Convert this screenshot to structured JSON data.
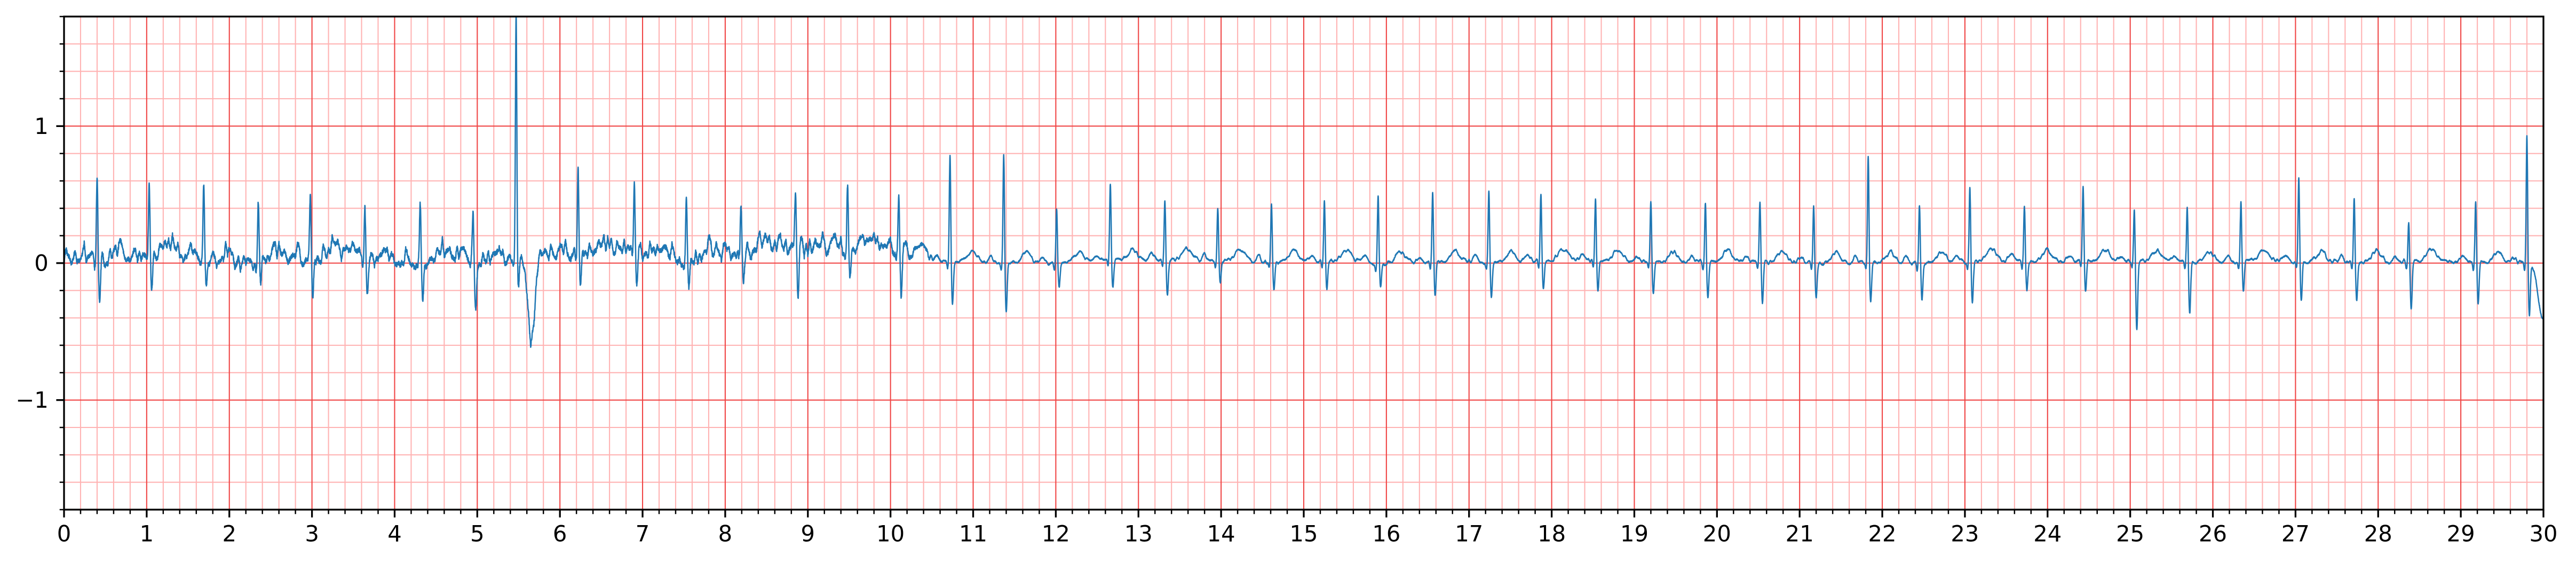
{
  "chart_data": {
    "type": "line",
    "title": "",
    "xlabel": "",
    "ylabel": "",
    "xlim": [
      0,
      30
    ],
    "ylim": [
      -1.8,
      1.8
    ],
    "x_major_step": 1,
    "x_minor_step": 0.2,
    "y_major_step": 1,
    "y_minor_step": 0.2,
    "grid": {
      "major": true,
      "minor": true
    },
    "x_ticks": [
      0,
      1,
      2,
      3,
      4,
      5,
      6,
      7,
      8,
      9,
      10,
      11,
      12,
      13,
      14,
      15,
      16,
      17,
      18,
      19,
      20,
      21,
      22,
      23,
      24,
      25,
      26,
      27,
      28,
      29,
      30
    ],
    "x_tick_labels": [
      "0",
      "1",
      "2",
      "3",
      "4",
      "5",
      "6",
      "7",
      "8",
      "9",
      "10",
      "11",
      "12",
      "13",
      "14",
      "15",
      "16",
      "17",
      "18",
      "19",
      "20",
      "21",
      "22",
      "23",
      "24",
      "25",
      "26",
      "27",
      "28",
      "29",
      "30"
    ],
    "y_ticks": [
      -1,
      0,
      1
    ],
    "y_tick_labels": [
      "−1",
      "0",
      "1"
    ],
    "colors": {
      "major_grid": "#f04646",
      "minor_grid": "#ffb3b3",
      "signal": "#1f77b4",
      "axes": "#000000",
      "background": "#ffffff"
    },
    "series": [
      {
        "wave": {
          "p": 0.04,
          "q": -0.05,
          "t": 0.08
        },
        "segments": [
          {
            "from": 0,
            "to": 10.4,
            "noise": 0.07,
            "offset": 0.06
          },
          {
            "from": 10.4,
            "to": 30,
            "noise": 0.016,
            "offset": 0.01
          }
        ],
        "beats": [
          {
            "t": 0.4,
            "r": 0.55,
            "s": -0.35
          },
          {
            "t": 1.03,
            "r": 0.55,
            "s": -0.28
          },
          {
            "t": 1.69,
            "r": 0.6,
            "s": -0.24
          },
          {
            "t": 2.35,
            "r": 0.4,
            "s": -0.22
          },
          {
            "t": 2.98,
            "r": 0.4,
            "s": -0.32
          },
          {
            "t": 3.64,
            "r": 0.4,
            "s": -0.26
          },
          {
            "t": 4.31,
            "r": 0.45,
            "s": -0.3
          },
          {
            "t": 4.95,
            "r": 0.4,
            "s": -0.36
          },
          {
            "t": 5.47,
            "r": 1.85,
            "s": -0.2,
            "extra": [
              {
                "dt": 0.19,
                "a": -0.62,
                "w": 0.045
              }
            ]
          },
          {
            "t": 6.22,
            "r": 0.65,
            "s": -0.22
          },
          {
            "t": 6.9,
            "r": 0.55,
            "s": -0.2
          },
          {
            "t": 7.53,
            "r": 0.42,
            "s": -0.24
          },
          {
            "t": 8.19,
            "r": 0.33,
            "s": -0.2
          },
          {
            "t": 8.85,
            "r": 0.38,
            "s": -0.38
          },
          {
            "t": 9.48,
            "r": 0.45,
            "s": -0.24
          },
          {
            "t": 10.1,
            "r": 0.38,
            "s": -0.35
          },
          {
            "t": 10.72,
            "r": 0.78,
            "s": -0.32
          },
          {
            "t": 11.37,
            "r": 0.8,
            "s": -0.35
          },
          {
            "t": 12.01,
            "r": 0.4,
            "s": -0.16
          },
          {
            "t": 12.66,
            "r": 0.56,
            "s": -0.2
          },
          {
            "t": 13.32,
            "r": 0.43,
            "s": -0.25
          },
          {
            "t": 13.96,
            "r": 0.38,
            "s": -0.18
          },
          {
            "t": 14.61,
            "r": 0.43,
            "s": -0.2
          },
          {
            "t": 15.25,
            "r": 0.45,
            "s": -0.22
          },
          {
            "t": 15.9,
            "r": 0.5,
            "s": -0.18
          },
          {
            "t": 16.56,
            "r": 0.5,
            "s": -0.26
          },
          {
            "t": 17.24,
            "r": 0.52,
            "s": -0.26
          },
          {
            "t": 17.87,
            "r": 0.48,
            "s": -0.2
          },
          {
            "t": 18.53,
            "r": 0.45,
            "s": -0.22
          },
          {
            "t": 19.2,
            "r": 0.45,
            "s": -0.22
          },
          {
            "t": 19.86,
            "r": 0.43,
            "s": -0.27
          },
          {
            "t": 20.52,
            "r": 0.43,
            "s": -0.3
          },
          {
            "t": 21.17,
            "r": 0.43,
            "s": -0.25
          },
          {
            "t": 21.83,
            "r": 0.8,
            "s": -0.28
          },
          {
            "t": 22.45,
            "r": 0.43,
            "s": -0.28
          },
          {
            "t": 23.06,
            "r": 0.55,
            "s": -0.3
          },
          {
            "t": 23.72,
            "r": 0.4,
            "s": -0.22
          },
          {
            "t": 24.43,
            "r": 0.55,
            "s": -0.22
          },
          {
            "t": 25.05,
            "r": 0.38,
            "s": -0.5
          },
          {
            "t": 25.69,
            "r": 0.4,
            "s": -0.38
          },
          {
            "t": 26.34,
            "r": 0.45,
            "s": -0.22
          },
          {
            "t": 27.04,
            "r": 0.62,
            "s": -0.3
          },
          {
            "t": 27.71,
            "r": 0.47,
            "s": -0.28
          },
          {
            "t": 28.37,
            "r": 0.3,
            "s": -0.35
          },
          {
            "t": 29.18,
            "r": 0.45,
            "s": -0.3
          },
          {
            "t": 29.8,
            "r": 0.95,
            "s": -0.38,
            "extra": [
              {
                "dt": 0.2,
                "a": -0.45,
                "w": 0.06
              }
            ]
          }
        ]
      }
    ]
  }
}
